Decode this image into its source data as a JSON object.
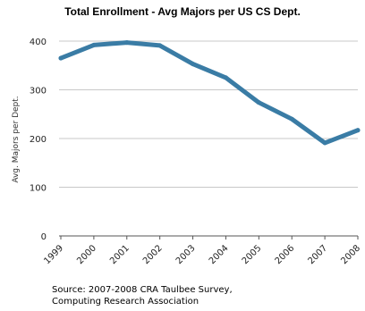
{
  "chart_data": {
    "type": "line",
    "title": "Total Enrollment - Avg Majors per US CS Dept.",
    "xlabel": "",
    "ylabel": "Avg. Majors per Dept.",
    "categories": [
      "1999",
      "2000",
      "2001",
      "2002",
      "2003",
      "2004",
      "2005",
      "2006",
      "2007",
      "2008"
    ],
    "series": [
      {
        "values": [
          365,
          392,
          397,
          391,
          353,
          325,
          274,
          240,
          191,
          217
        ]
      }
    ],
    "ylim": [
      0,
      400
    ],
    "yticks": [
      0,
      100,
      200,
      300,
      400
    ],
    "grid": true,
    "legend": "none",
    "colors": {
      "line": "#3a7ca5",
      "grid": "#c8c8c8",
      "axis": "#555555"
    }
  },
  "source": {
    "line1": "Source: 2007-2008 CRA Taulbee Survey,",
    "line2": "Computing Research Association"
  }
}
